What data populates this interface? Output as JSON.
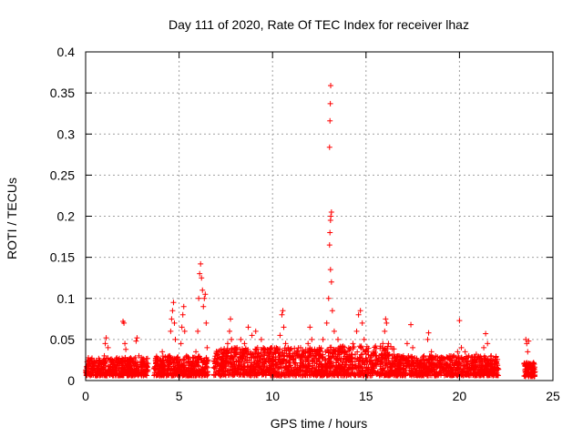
{
  "chart_data": {
    "type": "scatter",
    "title": "Day 111 of 2020, Rate Of TEC Index for receiver lhaz",
    "xlabel": "GPS time / hours",
    "ylabel": "ROTI / TECUs",
    "xlim": [
      0,
      25
    ],
    "ylim": [
      0,
      0.4
    ],
    "x_ticks": [
      0,
      5,
      10,
      15,
      20,
      25
    ],
    "x_tick_labels": [
      "0",
      "5",
      "10",
      "15",
      "20",
      "25"
    ],
    "y_ticks": [
      0,
      0.05,
      0.1,
      0.15,
      0.2,
      0.25,
      0.3,
      0.35,
      0.4
    ],
    "y_tick_labels": [
      "0",
      "0.05",
      "0.1",
      "0.15",
      "0.2",
      "0.25",
      "0.3",
      "0.35",
      "0.4"
    ],
    "grid": true,
    "marker": "+",
    "color": "#ff0000",
    "series": [
      {
        "name": "ROTI",
        "points": [
          [
            0.05,
            0.012
          ],
          [
            0.2,
            0.02
          ],
          [
            0.35,
            0.015
          ],
          [
            0.5,
            0.018
          ],
          [
            0.65,
            0.01
          ],
          [
            0.8,
            0.022
          ],
          [
            0.95,
            0.014
          ],
          [
            1.0,
            0.03
          ],
          [
            1.05,
            0.045
          ],
          [
            1.1,
            0.052
          ],
          [
            1.2,
            0.04
          ],
          [
            1.3,
            0.025
          ],
          [
            1.45,
            0.016
          ],
          [
            1.6,
            0.02
          ],
          [
            1.75,
            0.013
          ],
          [
            1.9,
            0.024
          ],
          [
            2.0,
            0.072
          ],
          [
            2.05,
            0.07
          ],
          [
            2.1,
            0.045
          ],
          [
            2.15,
            0.038
          ],
          [
            2.25,
            0.02
          ],
          [
            2.4,
            0.015
          ],
          [
            2.55,
            0.022
          ],
          [
            2.7,
            0.048
          ],
          [
            2.75,
            0.052
          ],
          [
            2.85,
            0.03
          ],
          [
            3.0,
            0.018
          ],
          [
            3.15,
            0.012
          ],
          [
            3.3,
            0.016
          ],
          [
            3.7,
            0.015
          ],
          [
            3.85,
            0.02
          ],
          [
            4.0,
            0.025
          ],
          [
            4.1,
            0.035
          ],
          [
            4.2,
            0.018
          ],
          [
            4.35,
            0.012
          ],
          [
            4.5,
            0.03
          ],
          [
            4.55,
            0.06
          ],
          [
            4.6,
            0.075
          ],
          [
            4.65,
            0.085
          ],
          [
            4.7,
            0.095
          ],
          [
            4.75,
            0.07
          ],
          [
            4.8,
            0.05
          ],
          [
            4.9,
            0.028
          ],
          [
            5.0,
            0.02
          ],
          [
            5.1,
            0.045
          ],
          [
            5.15,
            0.065
          ],
          [
            5.2,
            0.08
          ],
          [
            5.25,
            0.09
          ],
          [
            5.3,
            0.06
          ],
          [
            5.4,
            0.03
          ],
          [
            5.5,
            0.015
          ],
          [
            5.7,
            0.02
          ],
          [
            5.9,
            0.035
          ],
          [
            6.0,
            0.06
          ],
          [
            6.05,
            0.1
          ],
          [
            6.1,
            0.13
          ],
          [
            6.15,
            0.142
          ],
          [
            6.2,
            0.125
          ],
          [
            6.25,
            0.11
          ],
          [
            6.3,
            0.09
          ],
          [
            6.35,
            0.1
          ],
          [
            6.4,
            0.105
          ],
          [
            6.45,
            0.07
          ],
          [
            6.5,
            0.04
          ],
          [
            6.55,
            0.025
          ],
          [
            6.9,
            0.015
          ],
          [
            7.1,
            0.02
          ],
          [
            7.3,
            0.025
          ],
          [
            7.5,
            0.03
          ],
          [
            7.6,
            0.045
          ],
          [
            7.7,
            0.06
          ],
          [
            7.75,
            0.075
          ],
          [
            7.8,
            0.05
          ],
          [
            7.95,
            0.035
          ],
          [
            8.1,
            0.04
          ],
          [
            8.3,
            0.05
          ],
          [
            8.5,
            0.045
          ],
          [
            8.7,
            0.065
          ],
          [
            8.9,
            0.055
          ],
          [
            9.1,
            0.06
          ],
          [
            9.2,
            0.04
          ],
          [
            9.4,
            0.05
          ],
          [
            9.6,
            0.035
          ],
          [
            9.8,
            0.03
          ],
          [
            10.0,
            0.025
          ],
          [
            10.2,
            0.04
          ],
          [
            10.4,
            0.055
          ],
          [
            10.5,
            0.08
          ],
          [
            10.55,
            0.085
          ],
          [
            10.6,
            0.065
          ],
          [
            10.7,
            0.045
          ],
          [
            10.9,
            0.03
          ],
          [
            11.1,
            0.025
          ],
          [
            11.3,
            0.035
          ],
          [
            11.5,
            0.04
          ],
          [
            11.7,
            0.03
          ],
          [
            11.9,
            0.045
          ],
          [
            12.0,
            0.065
          ],
          [
            12.1,
            0.05
          ],
          [
            12.3,
            0.03
          ],
          [
            12.5,
            0.04
          ],
          [
            12.7,
            0.05
          ],
          [
            12.9,
            0.07
          ],
          [
            13.0,
            0.1
          ],
          [
            13.05,
            0.165
          ],
          [
            13.07,
            0.18
          ],
          [
            13.1,
            0.195
          ],
          [
            13.12,
            0.2
          ],
          [
            13.15,
            0.205
          ],
          [
            13.05,
            0.284
          ],
          [
            13.07,
            0.316
          ],
          [
            13.09,
            0.337
          ],
          [
            13.11,
            0.359
          ],
          [
            13.1,
            0.135
          ],
          [
            13.15,
            0.12
          ],
          [
            13.2,
            0.085
          ],
          [
            13.3,
            0.06
          ],
          [
            13.5,
            0.05
          ],
          [
            13.7,
            0.04
          ],
          [
            13.9,
            0.035
          ],
          [
            14.1,
            0.03
          ],
          [
            14.3,
            0.045
          ],
          [
            14.5,
            0.06
          ],
          [
            14.6,
            0.08
          ],
          [
            14.7,
            0.085
          ],
          [
            14.8,
            0.07
          ],
          [
            14.9,
            0.05
          ],
          [
            15.1,
            0.035
          ],
          [
            15.3,
            0.025
          ],
          [
            15.5,
            0.02
          ],
          [
            15.7,
            0.03
          ],
          [
            15.9,
            0.045
          ],
          [
            16.0,
            0.06
          ],
          [
            16.05,
            0.075
          ],
          [
            16.1,
            0.07
          ],
          [
            16.2,
            0.045
          ],
          [
            16.4,
            0.03
          ],
          [
            16.6,
            0.025
          ],
          [
            16.8,
            0.02
          ],
          [
            17.0,
            0.03
          ],
          [
            17.2,
            0.045
          ],
          [
            17.4,
            0.068
          ],
          [
            17.5,
            0.04
          ],
          [
            17.7,
            0.025
          ],
          [
            17.9,
            0.02
          ],
          [
            18.1,
            0.03
          ],
          [
            18.3,
            0.05
          ],
          [
            18.35,
            0.058
          ],
          [
            18.5,
            0.035
          ],
          [
            18.7,
            0.025
          ],
          [
            18.9,
            0.02
          ],
          [
            19.1,
            0.015
          ],
          [
            19.3,
            0.02
          ],
          [
            19.5,
            0.025
          ],
          [
            19.7,
            0.03
          ],
          [
            19.9,
            0.035
          ],
          [
            20.0,
            0.073
          ],
          [
            20.1,
            0.04
          ],
          [
            20.3,
            0.035
          ],
          [
            20.5,
            0.03
          ],
          [
            20.7,
            0.028
          ],
          [
            20.9,
            0.032
          ],
          [
            21.1,
            0.025
          ],
          [
            21.3,
            0.04
          ],
          [
            21.4,
            0.057
          ],
          [
            21.5,
            0.045
          ],
          [
            21.7,
            0.03
          ],
          [
            21.9,
            0.02
          ],
          [
            22.05,
            0.015
          ],
          [
            23.5,
            0.012
          ],
          [
            23.55,
            0.05
          ],
          [
            23.6,
            0.045
          ],
          [
            23.65,
            0.035
          ],
          [
            23.7,
            0.048
          ],
          [
            23.75,
            0.02
          ],
          [
            23.85,
            0.01
          ],
          [
            23.95,
            0.015
          ],
          [
            24.0,
            0.02
          ]
        ]
      }
    ],
    "bands": [
      {
        "x0": 0.0,
        "x1": 3.35,
        "y_lo": 0.006,
        "y_hi": 0.028
      },
      {
        "x0": 3.65,
        "x1": 6.55,
        "y_lo": 0.006,
        "y_hi": 0.03
      },
      {
        "x0": 6.85,
        "x1": 12.8,
        "y_lo": 0.006,
        "y_hi": 0.04
      },
      {
        "x0": 12.8,
        "x1": 16.5,
        "y_lo": 0.006,
        "y_hi": 0.042
      },
      {
        "x0": 16.5,
        "x1": 22.1,
        "y_lo": 0.006,
        "y_hi": 0.03
      },
      {
        "x0": 23.45,
        "x1": 24.05,
        "y_lo": 0.005,
        "y_hi": 0.022
      }
    ]
  }
}
